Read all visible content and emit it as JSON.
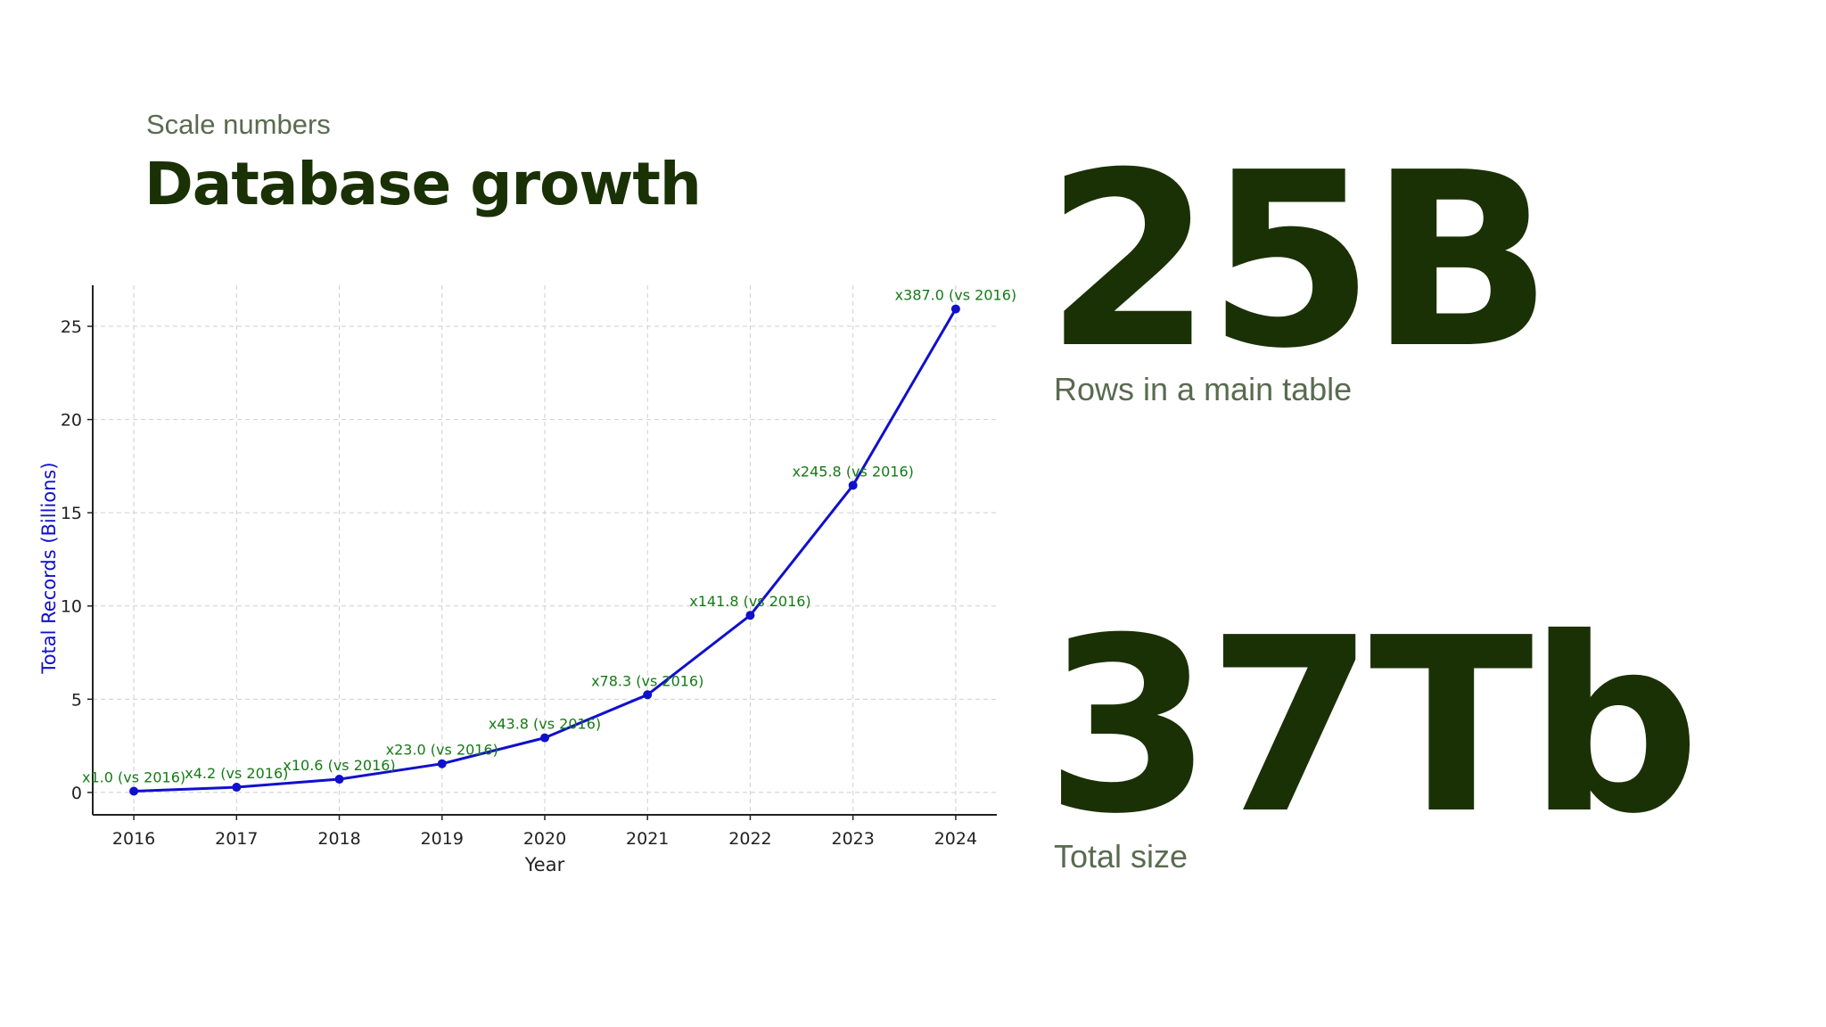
{
  "header": {
    "eyebrow": "Scale numbers",
    "title": "Database growth"
  },
  "stats": [
    {
      "value": "25B",
      "label": "Rows in a main table"
    },
    {
      "value": "37Tb",
      "label": "Total size"
    }
  ],
  "colors": {
    "title": "#1a3106",
    "muted": "#5a6b50",
    "line": "#1010cc",
    "annotation": "#157a15",
    "ylabel": "#1010cc"
  },
  "chart_data": {
    "type": "line",
    "title": "",
    "xlabel": "Year",
    "ylabel": "Total Records (Billions)",
    "x": [
      2016,
      2017,
      2018,
      2019,
      2020,
      2021,
      2022,
      2023,
      2024
    ],
    "series": [
      {
        "values": [
          0.067,
          0.28,
          0.71,
          1.54,
          2.93,
          5.24,
          9.5,
          16.47,
          25.93
        ]
      }
    ],
    "annotations": [
      "x1.0 (vs 2016)",
      "x4.2 (vs 2016)",
      "x10.6 (vs 2016)",
      "x23.0 (vs 2016)",
      "x43.8 (vs 2016)",
      "x78.3 (vs 2016)",
      "x141.8 (vs 2016)",
      "x245.8 (vs 2016)",
      "x387.0 (vs 2016)"
    ],
    "xticks": [
      "2016",
      "2017",
      "2018",
      "2019",
      "2020",
      "2021",
      "2022",
      "2023",
      "2024"
    ],
    "yticks": [
      "0",
      "5",
      "10",
      "15",
      "20",
      "25"
    ],
    "ylim": [
      -1.2,
      27.2
    ],
    "xlim": [
      2015.6,
      2024.4
    ],
    "grid": true
  }
}
